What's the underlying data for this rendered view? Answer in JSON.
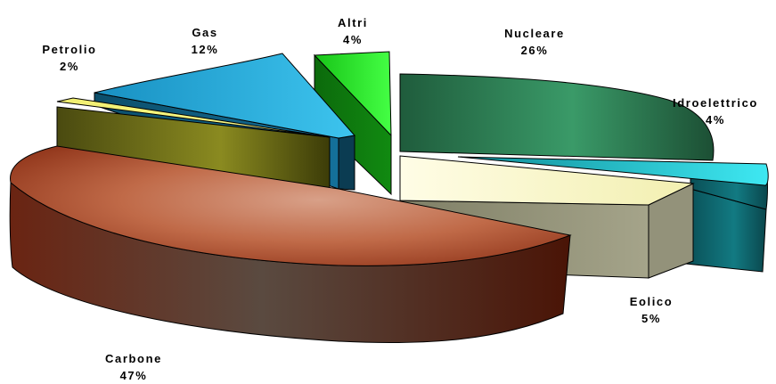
{
  "chart_data": {
    "type": "pie",
    "title": "",
    "style": "3d-exploded",
    "categories": [
      "Nucleare",
      "Idroelettrico",
      "Eolico",
      "Carbone",
      "Petrolio",
      "Gas",
      "Altri"
    ],
    "values": [
      26,
      4,
      5,
      47,
      2,
      12,
      4
    ],
    "value_labels": [
      "26%",
      "4%",
      "5%",
      "47%",
      "2%",
      "12%",
      "4%"
    ],
    "colors": [
      "#2e8b5c",
      "#19b8c4",
      "#fffac8",
      "#b85a3c",
      "#e6e650",
      "#1aa0d0",
      "#22dd22"
    ],
    "legend": "none"
  }
}
